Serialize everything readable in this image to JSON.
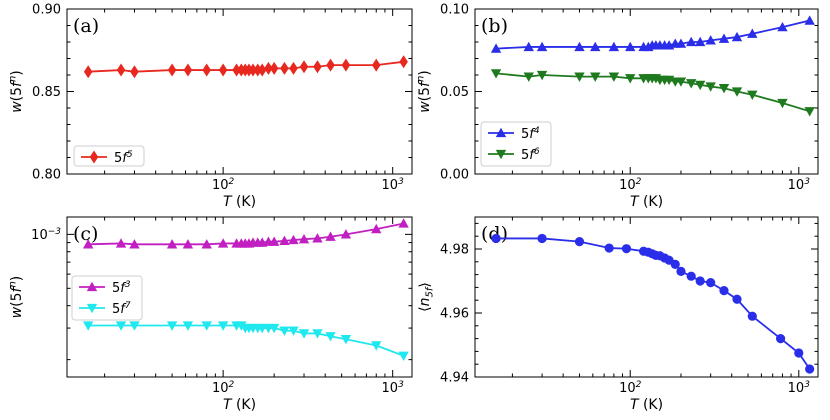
{
  "chart_data": [
    {
      "id": "a",
      "type": "line",
      "panel_label": "(a)",
      "xlabel": "T (K)",
      "ylabel": "w(5f^n)",
      "xscale": "log",
      "xlim": [
        12,
        1300
      ],
      "ylim": [
        0.8,
        0.9
      ],
      "yscale": "linear",
      "yticks": [
        0.8,
        0.85,
        0.9
      ],
      "ytick_labels": [
        "0.80",
        "0.85",
        "0.90"
      ],
      "xtick_labels": [
        "10^2",
        "10^3"
      ],
      "legend": {
        "loc": "lower-left",
        "entries": [
          "5f^5"
        ]
      },
      "x": [
        16,
        25,
        30,
        50,
        62,
        80,
        100,
        120,
        128,
        135,
        142,
        150,
        160,
        170,
        185,
        200,
        230,
        260,
        300,
        360,
        430,
        530,
        800,
        1160
      ],
      "series": [
        {
          "name": "5f^5",
          "color": "#e8281f",
          "marker": "diamond",
          "values": [
            0.862,
            0.863,
            0.862,
            0.863,
            0.863,
            0.863,
            0.863,
            0.863,
            0.863,
            0.863,
            0.863,
            0.863,
            0.863,
            0.863,
            0.864,
            0.864,
            0.864,
            0.864,
            0.865,
            0.865,
            0.866,
            0.866,
            0.866,
            0.868
          ]
        }
      ]
    },
    {
      "id": "b",
      "type": "line",
      "panel_label": "(b)",
      "xlabel": "T (K)",
      "ylabel": "w(5f^n)",
      "xscale": "log",
      "xlim": [
        12,
        1300
      ],
      "ylim": [
        0.0,
        0.1
      ],
      "yscale": "linear",
      "yticks": [
        0.0,
        0.05,
        0.1
      ],
      "ytick_labels": [
        "0.00",
        "0.05",
        "0.10"
      ],
      "xtick_labels": [
        "10^2",
        "10^3"
      ],
      "legend": {
        "loc": "lower-left",
        "entries": [
          "5f^4",
          "5f^6"
        ]
      },
      "x": [
        16,
        25,
        30,
        50,
        62,
        80,
        100,
        120,
        128,
        135,
        142,
        150,
        160,
        170,
        185,
        200,
        230,
        260,
        300,
        360,
        430,
        530,
        800,
        1160
      ],
      "series": [
        {
          "name": "5f^4",
          "color": "#2a2ee8",
          "marker": "triangle-up",
          "values": [
            0.076,
            0.077,
            0.077,
            0.077,
            0.077,
            0.077,
            0.077,
            0.077,
            0.077,
            0.078,
            0.078,
            0.078,
            0.078,
            0.078,
            0.079,
            0.079,
            0.08,
            0.08,
            0.081,
            0.082,
            0.083,
            0.085,
            0.089,
            0.093
          ]
        },
        {
          "name": "5f^6",
          "color": "#1f7a1f",
          "marker": "triangle-down",
          "values": [
            0.061,
            0.059,
            0.06,
            0.059,
            0.059,
            0.059,
            0.058,
            0.058,
            0.058,
            0.058,
            0.058,
            0.057,
            0.057,
            0.057,
            0.056,
            0.056,
            0.055,
            0.054,
            0.053,
            0.052,
            0.05,
            0.048,
            0.043,
            0.038
          ]
        }
      ]
    },
    {
      "id": "c",
      "type": "line",
      "panel_label": "(c)",
      "xlabel": "T (K)",
      "ylabel": "w(5f^n)",
      "xscale": "log",
      "yscale": "log",
      "xlim": [
        12,
        1300
      ],
      "ylim": [
        0.00016,
        0.00125
      ],
      "yticks": [
        0.001
      ],
      "ytick_labels": [
        "10^-3"
      ],
      "xtick_labels": [
        "10^2",
        "10^3"
      ],
      "legend": {
        "loc": "center-left",
        "entries": [
          "5f^3",
          "5f^7"
        ]
      },
      "x": [
        16,
        25,
        30,
        50,
        62,
        80,
        100,
        120,
        128,
        135,
        142,
        150,
        160,
        170,
        185,
        200,
        230,
        260,
        300,
        360,
        430,
        530,
        800,
        1160
      ],
      "series": [
        {
          "name": "5f^3",
          "color": "#c21fc2",
          "marker": "triangle-up",
          "values": [
            0.00088,
            0.00089,
            0.00088,
            0.00088,
            0.00088,
            0.00088,
            0.00089,
            0.00089,
            0.00089,
            0.00089,
            0.00089,
            0.0009,
            0.0009,
            0.0009,
            0.00091,
            0.00091,
            0.00092,
            0.00093,
            0.00094,
            0.00095,
            0.00097,
            0.001,
            0.00107,
            0.00115
          ]
        },
        {
          "name": "5f^7",
          "color": "#1fe8ee",
          "marker": "triangle-down",
          "values": [
            0.00031,
            0.00031,
            0.00031,
            0.00031,
            0.00031,
            0.00031,
            0.00031,
            0.00031,
            0.00031,
            0.0003,
            0.0003,
            0.0003,
            0.0003,
            0.0003,
            0.0003,
            0.0003,
            0.00029,
            0.00029,
            0.00028,
            0.00028,
            0.00027,
            0.00026,
            0.00024,
            0.00021
          ]
        }
      ]
    },
    {
      "id": "d",
      "type": "line",
      "panel_label": "(d)",
      "xlabel": "T (K)",
      "ylabel": "⟨n_5f⟩",
      "xscale": "log",
      "xlim": [
        12,
        1300
      ],
      "ylim": [
        4.94,
        4.99
      ],
      "yscale": "linear",
      "yticks": [
        4.94,
        4.96,
        4.98
      ],
      "ytick_labels": [
        "4.94",
        "4.96",
        "4.98"
      ],
      "xtick_labels": [
        "10^2",
        "10^3"
      ],
      "legend": null,
      "x": [
        16,
        30,
        50,
        75,
        95,
        120,
        128,
        135,
        142,
        150,
        160,
        170,
        185,
        200,
        230,
        260,
        300,
        360,
        430,
        530,
        780,
        1000,
        1160
      ],
      "series": [
        {
          "name": "n5f",
          "color": "#2a2ee8",
          "marker": "circle",
          "values": [
            4.9833,
            4.9833,
            4.9823,
            4.9803,
            4.9801,
            4.9793,
            4.979,
            4.9785,
            4.978,
            4.9779,
            4.9772,
            4.9765,
            4.9752,
            4.973,
            4.9715,
            4.97,
            4.9695,
            4.967,
            4.9643,
            4.959,
            4.952,
            4.9475,
            4.9425
          ]
        }
      ]
    }
  ]
}
